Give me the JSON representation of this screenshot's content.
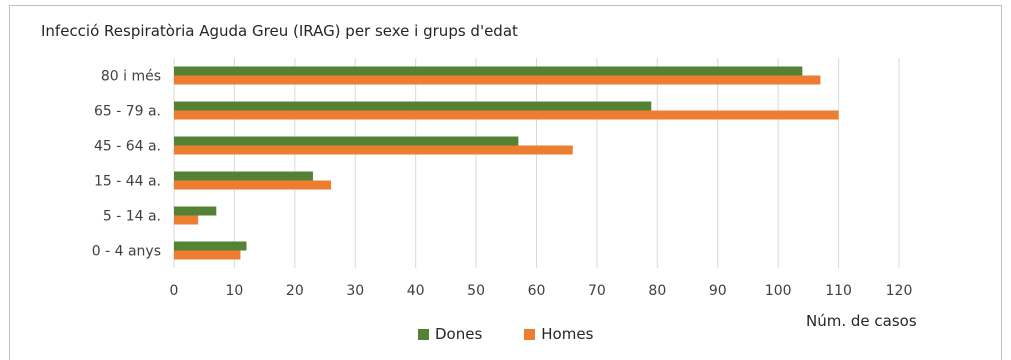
{
  "chart_data": {
    "type": "bar",
    "orientation": "horizontal",
    "title": "Infecció Respiratòria Aguda Greu (IRAG) per sexe i grups d'edat",
    "xlabel": "Núm. de casos",
    "ylabel": "",
    "categories": [
      "80 i més",
      "65 - 79 a.",
      "45 - 64 a.",
      "15 - 44 a.",
      "5 - 14 a.",
      "0 - 4 anys"
    ],
    "series": [
      {
        "name": "Dones",
        "color": "#548235",
        "values": [
          104,
          79,
          57,
          23,
          7,
          12
        ]
      },
      {
        "name": "Homes",
        "color": "#ed7d31",
        "values": [
          107,
          110,
          66,
          26,
          4,
          11
        ]
      }
    ],
    "xlim": [
      0,
      120
    ],
    "xticks": [
      "0",
      "10",
      "20",
      "30",
      "40",
      "50",
      "60",
      "70",
      "80",
      "90",
      "100",
      "110",
      "120"
    ],
    "grid": true,
    "legend_position": "bottom"
  }
}
